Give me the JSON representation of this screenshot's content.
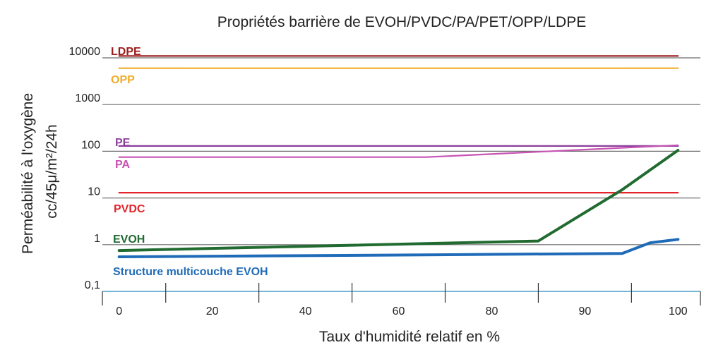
{
  "colors": {
    "background": "#ffffff",
    "gridline": "#6e6e6e",
    "baseline": "#4a9fc8"
  },
  "chart_data": {
    "type": "line",
    "title": "Propriétés barrière de EVOH/PVDC/PA/PET/OPP/LDPE",
    "xlabel": "Taux d'humidité relatif en %",
    "ylabel_lines": [
      "Perméabilité à l'oxygène",
      "cc/45μ/m²/24h"
    ],
    "ylog": true,
    "ylim": [
      0.1,
      10000
    ],
    "y_ticks": [
      {
        "value": 0.1,
        "label": "0,1"
      },
      {
        "value": 1,
        "label": "1"
      },
      {
        "value": 10,
        "label": "10"
      },
      {
        "value": 100,
        "label": "100"
      },
      {
        "value": 1000,
        "label": "1000"
      },
      {
        "value": 10000,
        "label": "10000"
      }
    ],
    "x_categories": [
      "0",
      "20",
      "40",
      "60",
      "80",
      "90",
      "100"
    ],
    "x_range": [
      -3,
      104
    ],
    "grid": "horizontal",
    "series": [
      {
        "name": "LDPE",
        "color": "#9b1c1c",
        "width": 2.2,
        "points": [
          [
            0,
            11000
          ],
          [
            100,
            11000
          ]
        ]
      },
      {
        "name": "OPP",
        "color": "#f0ac2a",
        "width": 2.2,
        "points": [
          [
            0,
            6000
          ],
          [
            100,
            6000
          ]
        ]
      },
      {
        "name": "PE",
        "color": "#8d3f9c",
        "width": 2.2,
        "points": [
          [
            0,
            130
          ],
          [
            100,
            130
          ]
        ]
      },
      {
        "name": "PA",
        "color": "#c654b4",
        "width": 2.2,
        "points": [
          [
            0,
            75
          ],
          [
            55,
            75
          ],
          [
            100,
            135
          ]
        ]
      },
      {
        "name": "PVDC",
        "color": "#e3242b",
        "width": 2.2,
        "points": [
          [
            0,
            13
          ],
          [
            100,
            13
          ]
        ]
      },
      {
        "name": "EVOH",
        "color": "#216b31",
        "width": 4,
        "points": [
          [
            0,
            0.75
          ],
          [
            75,
            1.2
          ],
          [
            90,
            15
          ],
          [
            100,
            105
          ]
        ]
      },
      {
        "name": "Structure multicouche EVOH",
        "color": "#1f6bb8",
        "width": 4,
        "points": [
          [
            0,
            0.55
          ],
          [
            50,
            0.6
          ],
          [
            90,
            0.65
          ],
          [
            95,
            1.1
          ],
          [
            100,
            1.3
          ]
        ]
      }
    ]
  }
}
